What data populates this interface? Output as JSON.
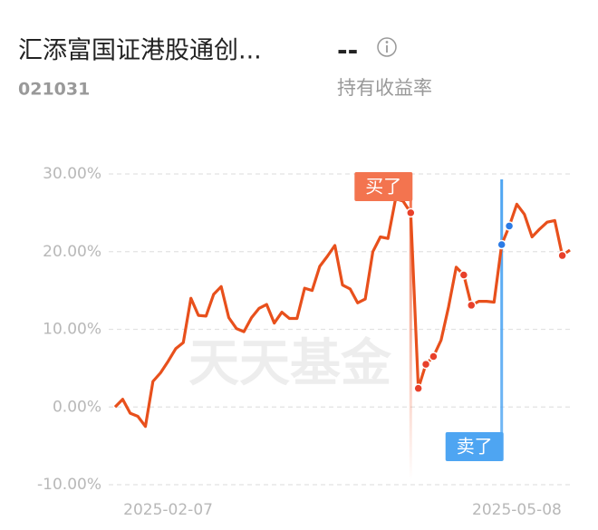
{
  "header": {
    "title": "汇添富国证港股通创...",
    "code": "021031",
    "value": "--",
    "value_label": "持有收益率"
  },
  "chart_data": {
    "type": "line",
    "watermark": "天天基金",
    "categories": [
      null,
      null,
      null,
      null,
      null,
      null,
      null,
      "2025-02-07",
      null,
      null,
      null,
      null,
      null,
      null,
      null,
      null,
      null,
      null,
      null,
      null,
      null,
      null,
      null,
      null,
      null,
      null,
      null,
      null,
      null,
      null,
      null,
      null,
      null,
      null,
      null,
      null,
      null,
      null,
      null,
      null,
      null,
      null,
      null,
      null,
      null,
      null,
      null,
      null,
      null,
      null,
      null,
      null,
      null,
      "2025-05-08",
      null,
      null,
      null,
      null,
      null,
      null,
      null
    ],
    "series": [
      {
        "color": "#e8501c",
        "values": [
          0,
          1.0,
          -0.8,
          -1.2,
          -2.5,
          3.3,
          4.4,
          5.9,
          7.5,
          8.3,
          14.0,
          11.8,
          11.7,
          14.5,
          15.5,
          11.5,
          10.1,
          9.7,
          11.5,
          12.7,
          13.2,
          10.8,
          12.2,
          11.4,
          11.4,
          15.3,
          15.0,
          18.1,
          19.4,
          20.8,
          15.7,
          15.2,
          13.4,
          13.9,
          20.0,
          21.9,
          21.7,
          26.8,
          26.5,
          25.0,
          2.4,
          5.5,
          6.5,
          8.6,
          12.9,
          18.0,
          17.0,
          13.1,
          13.6,
          13.6,
          13.5,
          20.9,
          23.3,
          26.1,
          24.8,
          21.9,
          22.9,
          23.8,
          24.0,
          19.5,
          20.2
        ]
      }
    ],
    "points": [
      {
        "index": 39,
        "color": "#e8402a"
      },
      {
        "index": 40,
        "color": "#e8402a"
      },
      {
        "index": 41,
        "color": "#e8402a"
      },
      {
        "index": 42,
        "color": "#e8402a"
      },
      {
        "index": 46,
        "color": "#e8402a"
      },
      {
        "index": 47,
        "color": "#e8402a"
      },
      {
        "index": 59,
        "color": "#e8402a"
      },
      {
        "index": 51,
        "color": "#2c7be5"
      },
      {
        "index": 52,
        "color": "#2c7be5"
      }
    ],
    "annotations": [
      {
        "text": "买了",
        "index": 39,
        "color": "#f3744f"
      },
      {
        "text": "卖了",
        "index": 51,
        "color": "#4ea5f2"
      }
    ],
    "ylim": [
      -10,
      30
    ],
    "yticks": [
      {
        "value": 30,
        "label": "30.00%"
      },
      {
        "value": 20,
        "label": "20.00%"
      },
      {
        "value": 10,
        "label": "10.00%"
      },
      {
        "value": 0,
        "label": "0.00%"
      },
      {
        "value": -10,
        "label": "-10.00%"
      }
    ],
    "grid": true
  }
}
